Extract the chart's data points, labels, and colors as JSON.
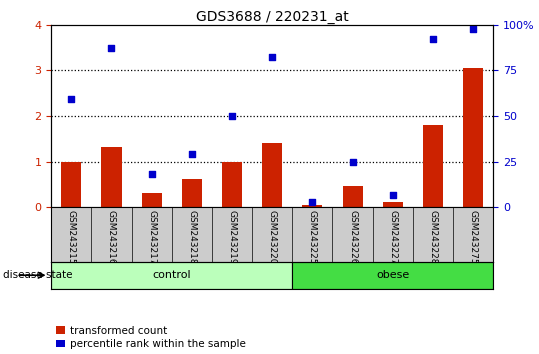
{
  "title": "GDS3688 / 220231_at",
  "samples": [
    "GSM243215",
    "GSM243216",
    "GSM243217",
    "GSM243218",
    "GSM243219",
    "GSM243220",
    "GSM243225",
    "GSM243226",
    "GSM243227",
    "GSM243228",
    "GSM243275"
  ],
  "red_values": [
    1.0,
    1.32,
    0.32,
    0.62,
    1.0,
    1.4,
    0.05,
    0.47,
    0.12,
    1.8,
    3.05
  ],
  "blue_values": [
    2.38,
    3.48,
    0.72,
    1.17,
    2.0,
    3.3,
    0.11,
    1.0,
    0.27,
    3.68,
    3.9
  ],
  "left_ylim": [
    0,
    4
  ],
  "right_ylim": [
    0,
    100
  ],
  "left_yticks": [
    0,
    1,
    2,
    3,
    4
  ],
  "right_yticks": [
    0,
    25,
    50,
    75,
    100
  ],
  "right_yticklabels": [
    "0",
    "25",
    "50",
    "75",
    "100%"
  ],
  "bar_color": "#cc2200",
  "dot_color": "#0000cc",
  "control_label": "control",
  "obese_label": "obese",
  "n_control": 6,
  "n_obese": 5,
  "disease_state_label": "disease state",
  "legend_red": "transformed count",
  "legend_blue": "percentile rank within the sample",
  "control_color": "#bbffbb",
  "obese_color": "#44dd44",
  "tick_area_color": "#cccccc",
  "dotted_line_y": [
    1,
    2,
    3
  ],
  "bar_width": 0.5
}
